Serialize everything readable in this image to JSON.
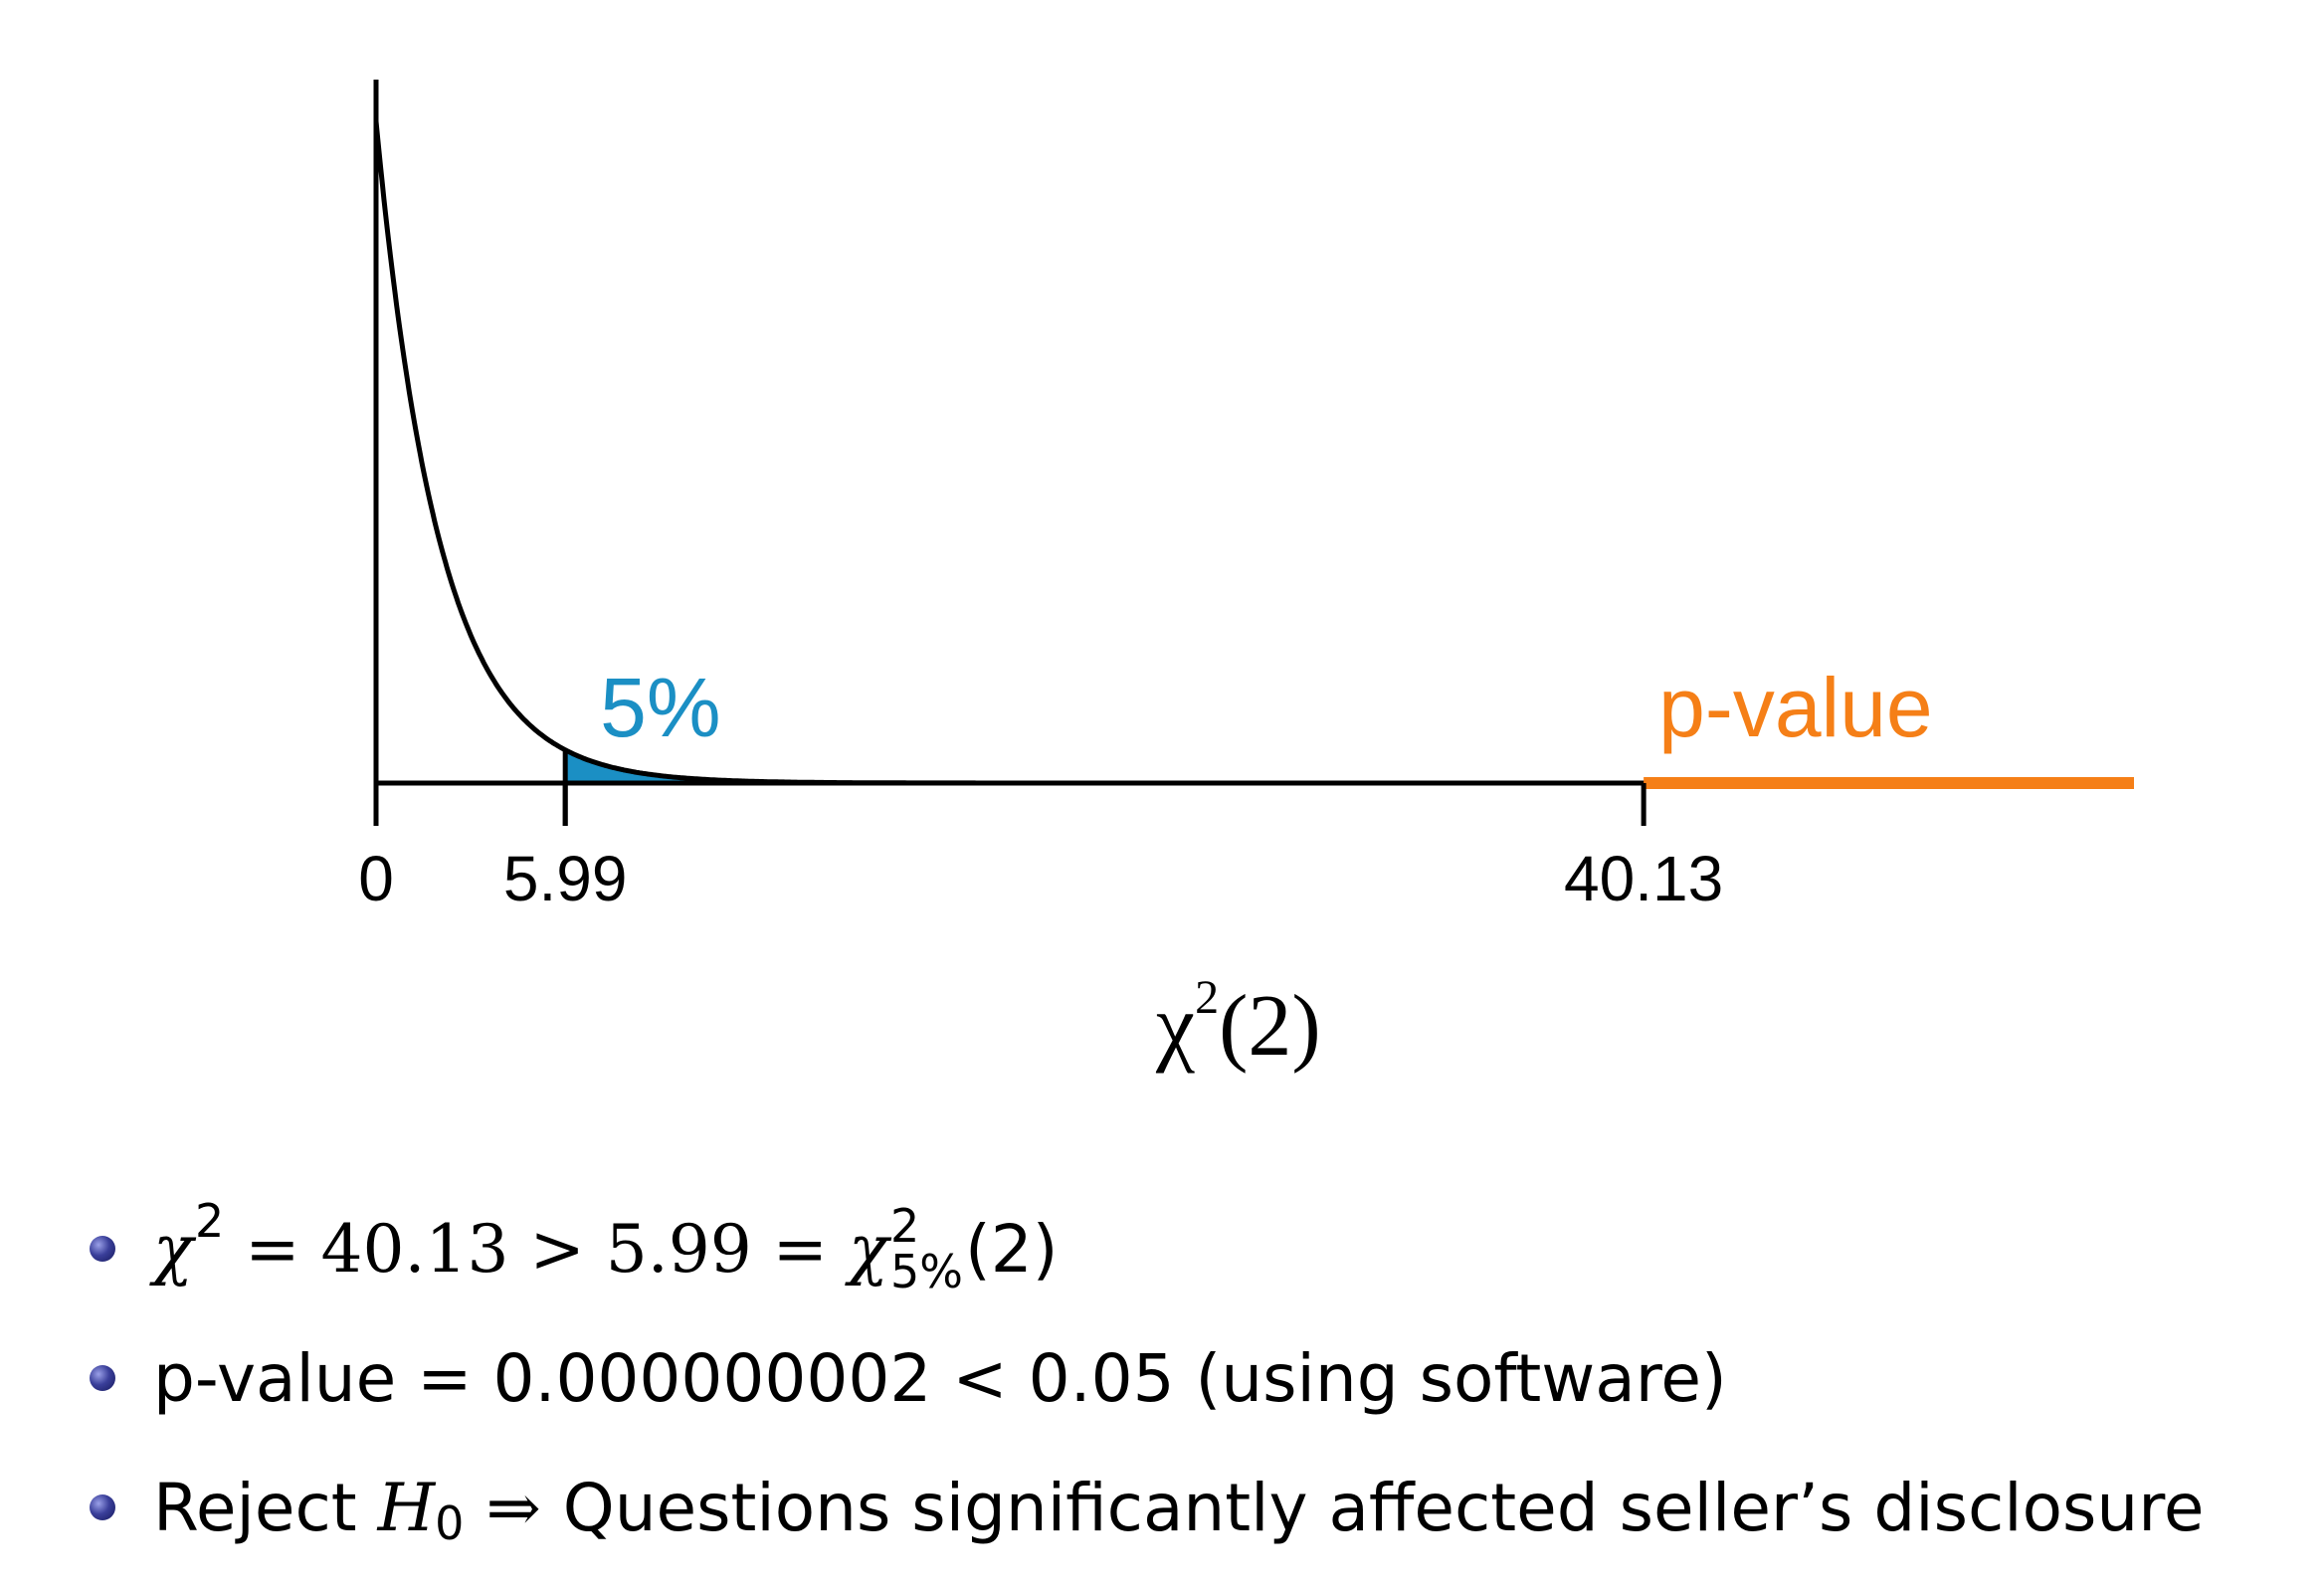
{
  "chart_data": {
    "type": "area",
    "distribution": "chi-square",
    "df": 2,
    "xlabel": "χ2(2)",
    "xlim": [
      0,
      50
    ],
    "ticks": [
      "0",
      "5.99",
      "40.13"
    ],
    "tick_values": [
      0,
      5.99,
      40.13
    ],
    "critical_value": 5.99,
    "test_statistic": 40.13,
    "shaded_region": {
      "from": 5.99,
      "label": "5%",
      "color": "#1b8fc4"
    },
    "pvalue_region": {
      "from": 40.13,
      "label": "p-value",
      "color": "#f57f17"
    },
    "curve_color": "#000000"
  },
  "bullets": [
    {
      "chi": "χ",
      "chi_sup": "2",
      "eq1": " = 40.13 > 5.99 = ",
      "chi2": "χ",
      "crit_sup": "2",
      "crit_sub": "5%",
      "tail": "(2)"
    },
    {
      "text": "p-value = 0.000000002 < 0.05 (using software)"
    },
    {
      "reject": "Reject ",
      "h": "H",
      "h_sub": "0",
      "arrow": "⇒",
      "conclusion": "Questions significantly affected seller’s disclosure"
    }
  ]
}
